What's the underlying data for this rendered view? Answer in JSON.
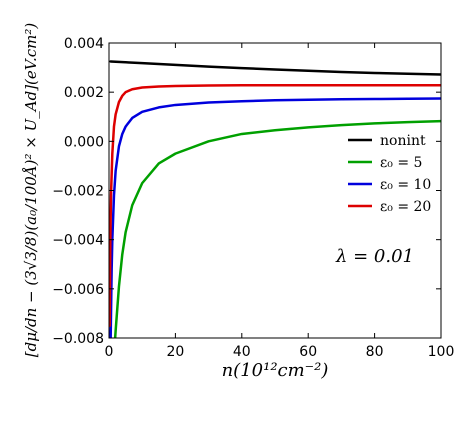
{
  "chart_data": {
    "type": "line",
    "xlabel": "n(10¹²cm⁻²)",
    "ylabel": "[dμ/dn − (3√3/8)(a₀/100Å)² × U_Ad](eV.cm²)",
    "xlim": [
      0,
      100
    ],
    "ylim": [
      -0.008,
      0.004
    ],
    "xticks": [
      0,
      20,
      40,
      60,
      80,
      100
    ],
    "yticks": [
      0.004,
      0.002,
      0.0,
      -0.002,
      -0.004,
      -0.006,
      -0.008
    ],
    "xtick_labels": [
      "0",
      "20",
      "40",
      "60",
      "80",
      "100"
    ],
    "ytick_labels": [
      "0.004",
      "0.002",
      "0.000",
      "−0.002",
      "−0.004",
      "−0.006",
      "−0.008"
    ],
    "grid": false,
    "legend_position": "center-right",
    "annotation": "λ = 0.01",
    "series": [
      {
        "name": "nonint",
        "color": "#000000",
        "x": [
          0.5,
          10,
          20,
          30,
          40,
          50,
          60,
          70,
          80,
          90,
          100
        ],
        "y": [
          0.00325,
          0.00318,
          0.00311,
          0.00304,
          0.00298,
          0.00292,
          0.00287,
          0.00282,
          0.00278,
          0.00275,
          0.00272
        ]
      },
      {
        "name": "ε₀ = 5",
        "color": "#00a000",
        "x": [
          1.8,
          2,
          3,
          4,
          5,
          7,
          10,
          15,
          20,
          30,
          40,
          50,
          60,
          70,
          80,
          90,
          100
        ],
        "y": [
          -0.0081,
          -0.0077,
          -0.0059,
          -0.0046,
          -0.0037,
          -0.0026,
          -0.0017,
          -0.0009,
          -0.0005,
          0.0,
          0.0003,
          0.00045,
          0.00057,
          0.00066,
          0.00073,
          0.00078,
          0.00082
        ]
      },
      {
        "name": "ε₀ = 10",
        "color": "#0000dd",
        "x": [
          0.5,
          0.8,
          1,
          1.5,
          2,
          3,
          4,
          5,
          7,
          10,
          15,
          20,
          30,
          40,
          50,
          60,
          70,
          80,
          90,
          100
        ],
        "y": [
          -0.008,
          -0.0052,
          -0.004,
          -0.0022,
          -0.0012,
          -0.0002,
          0.0003,
          0.0006,
          0.00095,
          0.0012,
          0.00138,
          0.00148,
          0.00158,
          0.00163,
          0.00167,
          0.00169,
          0.00171,
          0.00172,
          0.00173,
          0.00174
        ]
      },
      {
        "name": "ε₀ = 20",
        "color": "#dd0000",
        "x": [
          0.2,
          0.4,
          0.6,
          1,
          1.5,
          2,
          3,
          4,
          5,
          7,
          10,
          15,
          20,
          30,
          40,
          50,
          60,
          70,
          80,
          90,
          100
        ],
        "y": [
          -0.0075,
          -0.004,
          -0.0022,
          -0.0005,
          0.0006,
          0.0011,
          0.0016,
          0.00185,
          0.002,
          0.00212,
          0.00219,
          0.00223,
          0.00225,
          0.00227,
          0.00228,
          0.00228,
          0.00228,
          0.00228,
          0.00228,
          0.00228,
          0.00228
        ]
      }
    ]
  }
}
